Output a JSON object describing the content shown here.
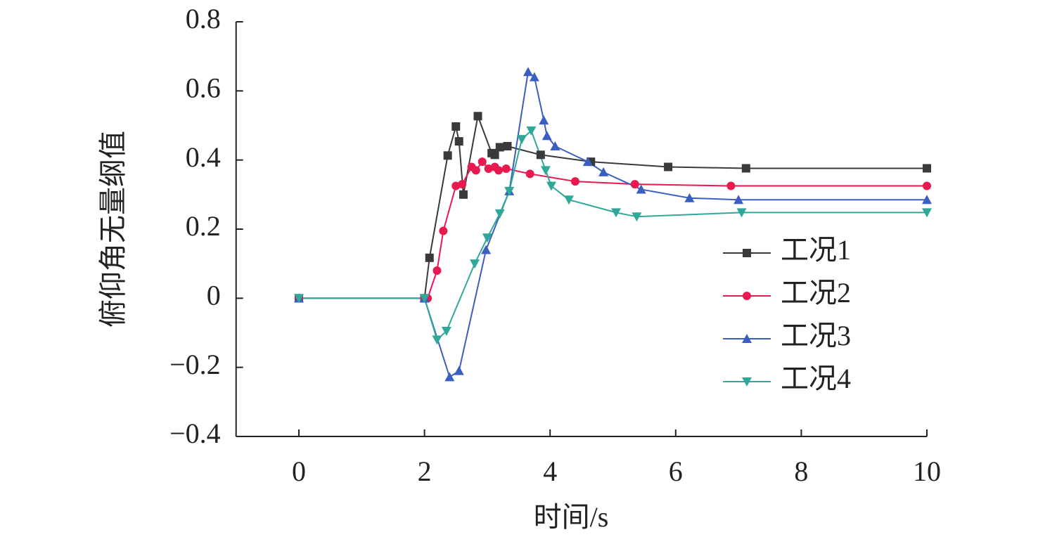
{
  "chart_data": {
    "type": "line",
    "xlabel": "时间/s",
    "ylabel": "俯仰角无量纲值",
    "xlim": [
      -1,
      10
    ],
    "ylim": [
      -0.4,
      0.8
    ],
    "xticks": [
      0,
      2,
      4,
      6,
      8,
      10
    ],
    "yticks": [
      0.8,
      0.6,
      0.4,
      0.2,
      0,
      {
        "value": -0.2,
        "label": "−0.2"
      },
      {
        "value": -0.4,
        "label": "−0.4"
      }
    ],
    "grid": false,
    "legend": "right",
    "series": [
      {
        "name": "工况1",
        "color": "#3a3a3a",
        "marker": "square",
        "x": [
          0,
          2,
          2.08,
          2.37,
          2.5,
          2.55,
          2.62,
          2.85,
          3.07,
          3.12,
          3.2,
          3.32,
          3.85,
          4.65,
          5.88,
          7.12,
          10
        ],
        "values": [
          0,
          0,
          0.117,
          0.413,
          0.497,
          0.454,
          0.3,
          0.527,
          0.42,
          0.415,
          0.437,
          0.44,
          0.415,
          0.395,
          0.38,
          0.376,
          0.376
        ]
      },
      {
        "name": "工况2",
        "color": "#e8194f",
        "marker": "circle",
        "x": [
          0,
          2,
          2.05,
          2.2,
          2.3,
          2.5,
          2.6,
          2.75,
          2.82,
          2.92,
          3.02,
          3.12,
          3.18,
          3.3,
          3.68,
          4.4,
          5.35,
          6.88,
          10
        ],
        "values": [
          0,
          0,
          0,
          0.08,
          0.195,
          0.325,
          0.33,
          0.38,
          0.37,
          0.395,
          0.375,
          0.38,
          0.37,
          0.375,
          0.36,
          0.338,
          0.33,
          0.325,
          0.325
        ]
      },
      {
        "name": "工况3",
        "color": "#3b5fc0",
        "marker": "triangle",
        "x": [
          0,
          2,
          2.4,
          2.55,
          2.98,
          3.35,
          3.65,
          3.75,
          3.9,
          3.95,
          4.08,
          4.6,
          4.85,
          5.45,
          6.22,
          7,
          10
        ],
        "values": [
          0,
          0,
          -0.228,
          -0.21,
          0.14,
          0.31,
          0.655,
          0.64,
          0.515,
          0.47,
          0.44,
          0.395,
          0.365,
          0.315,
          0.29,
          0.285,
          0.285
        ]
      },
      {
        "name": "工况4",
        "color": "#2fa89a",
        "marker": "triangle-down",
        "x": [
          0,
          2,
          2.2,
          2.35,
          2.8,
          3.0,
          3.2,
          3.35,
          3.55,
          3.7,
          3.93,
          4.02,
          4.3,
          5.05,
          5.38,
          7.05,
          10
        ],
        "values": [
          0,
          0,
          -0.12,
          -0.095,
          0.1,
          0.175,
          0.245,
          0.31,
          0.46,
          0.485,
          0.37,
          0.325,
          0.285,
          0.248,
          0.236,
          0.248,
          0.248
        ]
      }
    ]
  }
}
